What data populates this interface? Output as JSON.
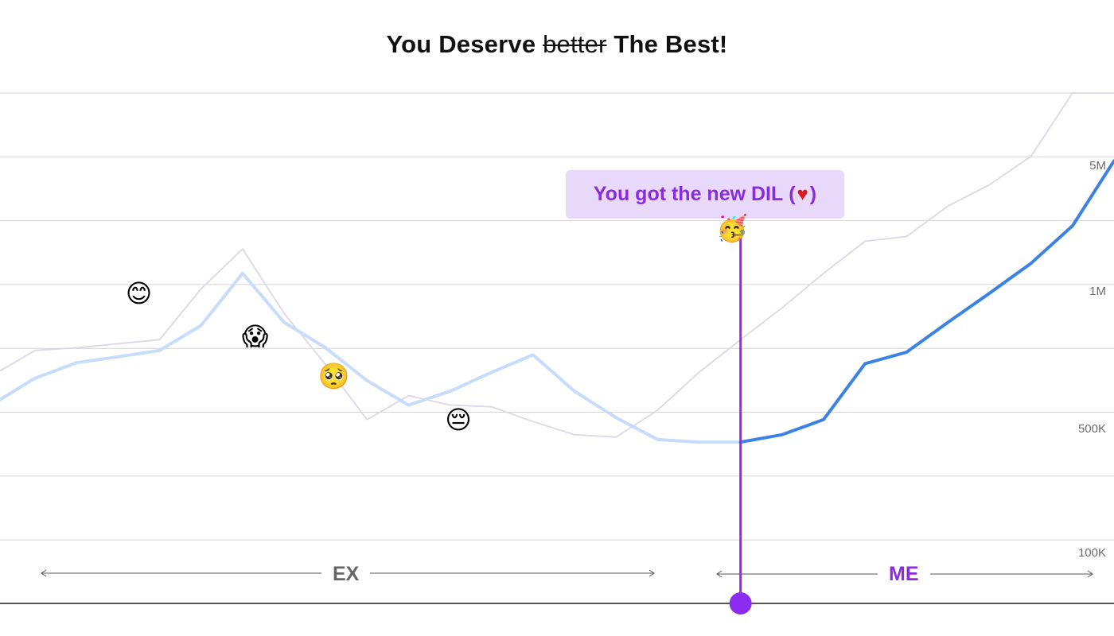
{
  "title": {
    "before": "You Deserve",
    "struck": "better",
    "after": "The Best!"
  },
  "callout": {
    "text": "You got the new DIL",
    "open_paren": "(",
    "heart": "♥",
    "close_paren": ")"
  },
  "periods": {
    "ex": "EX",
    "me": "ME"
  },
  "colors": {
    "ex_line": "#c6dcfa",
    "me_line": "#3b82e6",
    "ghost_line": "#ddd6ea",
    "marker": "#8c2cf0",
    "callout_bg": "#e8d9fb",
    "ex_label": "#666666",
    "me_label": "#8a2be2",
    "grid": "#d4d4d4",
    "baseline": "#555555"
  },
  "chart_data": {
    "type": "line",
    "title": "You Deserve better The Best!",
    "xlabel": "",
    "ylabel": "",
    "y_scale": "log",
    "ylim": [
      50000,
      20000000
    ],
    "y_ticks": [
      {
        "label": "100K",
        "value": 100000
      },
      {
        "label": "500K",
        "value": 500000
      },
      {
        "label": "1M",
        "value": 1000000
      },
      {
        "label": "5M",
        "value": 5000000
      }
    ],
    "grid": true,
    "legend": "none",
    "x": [
      0,
      1,
      2,
      3,
      4,
      5,
      6,
      7,
      8,
      9,
      10,
      11,
      12,
      13,
      14,
      15,
      16,
      17,
      18,
      19,
      20,
      21,
      22,
      23,
      24,
      25,
      26,
      27
    ],
    "series": [
      {
        "values": [
          520000,
          700000,
          840000,
          900000,
          970000,
          1300000,
          2400000,
          1350000,
          1000000,
          680000,
          510000,
          600000,
          750000,
          920000,
          600000,
          440000,
          340000,
          330000,
          330000,
          null,
          null,
          null,
          null,
          null,
          null,
          null,
          null,
          null
        ]
      },
      {
        "values": [
          null,
          null,
          null,
          null,
          null,
          null,
          null,
          null,
          null,
          null,
          null,
          null,
          null,
          null,
          null,
          null,
          null,
          null,
          330000,
          360000,
          430000,
          830000,
          950000,
          1350000,
          1900000,
          2700000,
          4200000,
          9000000
        ]
      },
      {
        "values": [
          730000,
          970000,
          1000000,
          1050000,
          1100000,
          2000000,
          3200000,
          1500000,
          820000,
          430000,
          570000,
          510000,
          500000,
          420000,
          360000,
          350000,
          480000,
          750000,
          1100000,
          1600000,
          2400000,
          3500000,
          3700000,
          5300000,
          6800000,
          9500000,
          20000000,
          20000000
        ]
      }
    ],
    "annotations": [
      {
        "x": 3.5,
        "y": 1900000,
        "emoji": "😊"
      },
      {
        "x": 6.3,
        "y": 1150000,
        "emoji": "😱"
      },
      {
        "x": 8.2,
        "y": 720000,
        "emoji": "🥺"
      },
      {
        "x": 11.2,
        "y": 430000,
        "emoji": "😔"
      },
      {
        "x": 17.8,
        "y": 4100000,
        "emoji": "🥳"
      }
    ],
    "event_marker": {
      "x": 18,
      "label": "You got the new DIL (♥)"
    }
  }
}
